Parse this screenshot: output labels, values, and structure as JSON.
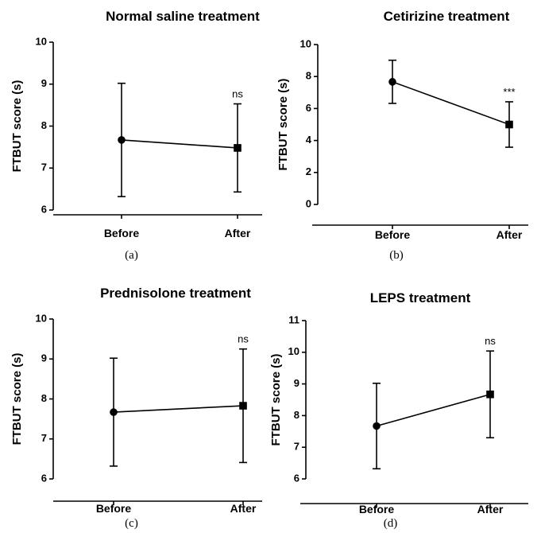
{
  "chart_data": [
    {
      "type": "line",
      "title": "Normal saline treatment",
      "ylabel": "FTBUT score (s)",
      "xlabel": "",
      "categories": [
        "Before",
        "After"
      ],
      "values": [
        7.67,
        7.48
      ],
      "error": [
        1.35,
        1.05
      ],
      "markers": [
        "circle",
        "square"
      ],
      "ylim": [
        6,
        10
      ],
      "yticks": [
        6,
        7,
        8,
        9,
        10
      ],
      "significance": "ns",
      "panel_label": "(a)"
    },
    {
      "type": "line",
      "title": "Cetirizine treatment",
      "ylabel": "FTBUT score (s)",
      "xlabel": "",
      "categories": [
        "Before",
        "After"
      ],
      "values": [
        7.67,
        5.0
      ],
      "error": [
        1.35,
        1.42
      ],
      "markers": [
        "circle",
        "square"
      ],
      "ylim": [
        0,
        10
      ],
      "yticks": [
        0,
        2,
        4,
        6,
        8,
        10
      ],
      "significance": "***",
      "panel_label": "(b)"
    },
    {
      "type": "line",
      "title": "Prednisolone treatment",
      "ylabel": "FTBUT score (s)",
      "xlabel": "",
      "categories": [
        "Before",
        "After"
      ],
      "values": [
        7.67,
        7.83
      ],
      "error": [
        1.35,
        1.42
      ],
      "markers": [
        "circle",
        "square"
      ],
      "ylim": [
        6,
        10
      ],
      "yticks": [
        6,
        7,
        8,
        9,
        10
      ],
      "significance": "ns",
      "panel_label": "(c)"
    },
    {
      "type": "line",
      "title": "LEPS treatment",
      "ylabel": "FTBUT score (s)",
      "xlabel": "",
      "categories": [
        "Before",
        "After"
      ],
      "values": [
        7.67,
        8.67
      ],
      "error": [
        1.35,
        1.37
      ],
      "markers": [
        "circle",
        "square"
      ],
      "ylim": [
        6,
        11
      ],
      "yticks": [
        6,
        7,
        8,
        9,
        10,
        11
      ],
      "significance": "ns",
      "panel_label": "(d)"
    }
  ]
}
